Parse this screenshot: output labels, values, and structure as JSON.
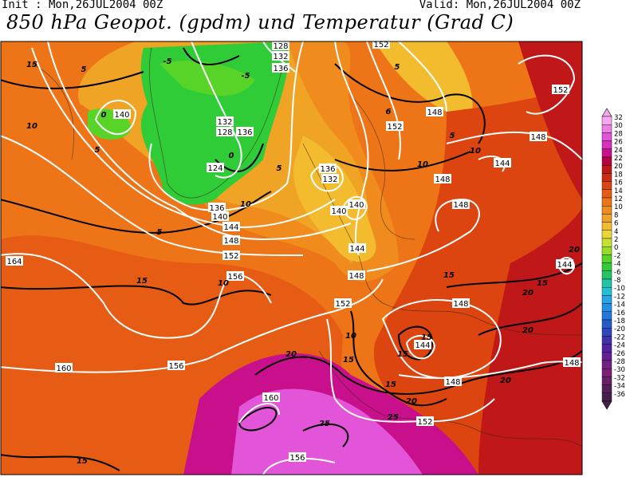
{
  "header": {
    "init": "Init : Mon,26JUL2004 00Z",
    "valid": "Valid: Mon,26JUL2004 00Z",
    "title": "850 hPa Geopot. (gpdm) und Temperatur (Grad C)"
  },
  "colorbar": {
    "labels": [
      32,
      30,
      28,
      26,
      24,
      22,
      20,
      18,
      16,
      14,
      12,
      10,
      8,
      6,
      4,
      2,
      0,
      -2,
      -4,
      -6,
      -8,
      -10,
      -12,
      -14,
      -16,
      -18,
      -20,
      -22,
      -24,
      -26,
      -28,
      -30,
      -32,
      -34,
      -36
    ],
    "colors": [
      "#f4a8f0",
      "#ea80e6",
      "#e254d8",
      "#d830bc",
      "#c8108c",
      "#b80040",
      "#c01818",
      "#cc2c10",
      "#dc4410",
      "#e65c14",
      "#ee7418",
      "#f08c1e",
      "#f0a426",
      "#f2bc2e",
      "#ecd438",
      "#c8e030",
      "#98dc24",
      "#58d428",
      "#30cc38",
      "#22c468",
      "#22c4a4",
      "#22c0d4",
      "#22a8e4",
      "#2290e4",
      "#2276dc",
      "#245ccc",
      "#3046bc",
      "#4030ac",
      "#5222a0",
      "#622094",
      "#722086",
      "#7c2076",
      "#682066",
      "#562058",
      "#46204a"
    ]
  },
  "map": {
    "geopotential_labels": [
      128,
      132,
      136,
      132,
      128,
      136,
      140,
      124,
      136,
      132,
      140,
      140,
      136,
      140,
      144,
      148,
      152,
      144,
      148,
      152,
      156,
      164,
      160,
      156,
      160,
      156,
      152,
      148,
      152,
      152,
      148,
      144,
      148,
      148,
      148,
      144,
      148,
      148,
      144,
      152
    ],
    "temperature_labels": [
      15,
      5,
      10,
      5,
      0,
      -5,
      -5,
      0,
      5,
      10,
      5,
      15,
      10,
      5,
      5,
      10,
      10,
      6,
      15,
      15,
      20,
      20,
      20,
      20,
      15,
      15,
      10,
      15,
      15,
      20,
      25,
      20,
      25,
      15
    ]
  }
}
